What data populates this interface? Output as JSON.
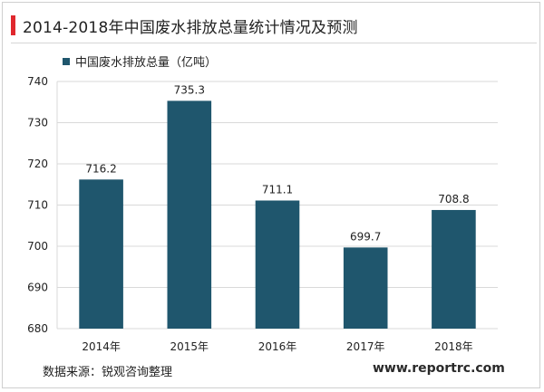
{
  "title": "2014-2018年中国废水排放总量统计情况及预测",
  "source": "数据来源：锐观咨询整理",
  "website": "www.reportrc.com",
  "colors": {
    "accent": "#e0282e",
    "bar": "#1f566d"
  },
  "chart_data": {
    "type": "bar",
    "categories": [
      "2014年",
      "2015年",
      "2016年",
      "2017年",
      "2018年"
    ],
    "series": [
      {
        "name": "中国废水排放总量（亿吨）",
        "values": [
          716.2,
          735.3,
          711.1,
          699.7,
          708.8
        ]
      }
    ],
    "data_labels": [
      "716.2",
      "735.3",
      "711.1",
      "699.7",
      "708.8"
    ],
    "ylim": [
      680,
      740
    ],
    "yticks": [
      680,
      690,
      700,
      710,
      720,
      730,
      740
    ],
    "grid": true,
    "legend_position": "top-left"
  }
}
